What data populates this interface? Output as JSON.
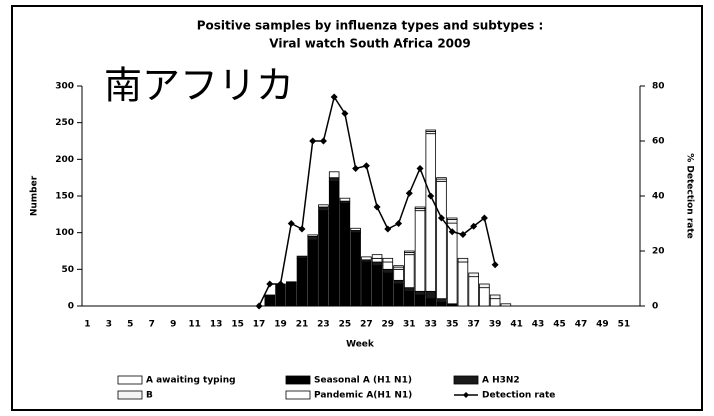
{
  "chart_data": {
    "type": "bar",
    "title": "Positive samples by influenza types and subtypes :",
    "subtitle": "Viral watch South Africa 2009",
    "annotation": "南アフリカ",
    "x_label": "Week",
    "y_label": "Number",
    "y2_label": "% Detection rate",
    "categories": [
      1,
      null,
      3,
      null,
      5,
      null,
      7,
      null,
      9,
      null,
      11,
      null,
      13,
      null,
      15,
      null,
      17,
      null,
      19,
      null,
      21,
      null,
      23,
      null,
      25,
      null,
      27,
      null,
      29,
      null,
      31,
      null,
      33,
      null,
      35,
      null,
      37,
      null,
      39,
      null,
      41,
      null,
      43,
      null,
      45,
      null,
      47,
      null,
      49,
      null,
      51,
      null
    ],
    "ylim": [
      0,
      300
    ],
    "yticks": [
      0,
      50,
      100,
      150,
      200,
      250,
      300
    ],
    "y2lim": [
      0,
      80
    ],
    "y2ticks": [
      0,
      20,
      40,
      60,
      80
    ],
    "stacked": true,
    "series": [
      {
        "name": "A awaiting typing",
        "color": "#ffffff",
        "values": [
          0,
          0,
          0,
          0,
          0,
          0,
          0,
          0,
          0,
          0,
          0,
          0,
          0,
          0,
          0,
          0,
          0,
          0,
          0,
          0,
          0,
          2,
          3,
          8,
          4,
          3,
          4,
          5,
          5,
          2,
          2,
          2,
          2,
          2,
          2,
          0,
          0,
          0,
          0,
          0,
          0,
          0,
          0,
          0,
          0,
          0,
          0,
          0,
          0,
          0,
          0,
          0
        ]
      },
      {
        "name": "Seasonal A (H1 N1)",
        "color": "#000000",
        "values": [
          0,
          0,
          0,
          0,
          0,
          0,
          0,
          0,
          0,
          0,
          0,
          0,
          0,
          0,
          0,
          0,
          0,
          15,
          30,
          33,
          65,
          90,
          130,
          170,
          140,
          100,
          60,
          55,
          45,
          30,
          20,
          15,
          10,
          5,
          3,
          0,
          0,
          0,
          0,
          0,
          0,
          0,
          0,
          0,
          0,
          0,
          0,
          0,
          0,
          0,
          0,
          0
        ]
      },
      {
        "name": "A H3N2",
        "color": "#1a1a1a",
        "values": [
          0,
          0,
          0,
          0,
          0,
          0,
          0,
          0,
          0,
          0,
          0,
          0,
          0,
          0,
          0,
          0,
          0,
          0,
          0,
          0,
          3,
          5,
          5,
          5,
          3,
          3,
          3,
          5,
          5,
          5,
          5,
          5,
          10,
          5,
          0,
          0,
          0,
          0,
          0,
          0,
          0,
          0,
          0,
          0,
          0,
          0,
          0,
          0,
          0,
          0,
          0,
          0
        ]
      },
      {
        "name": "B",
        "color": "#f4f4f4",
        "values": [
          0,
          0,
          0,
          0,
          0,
          0,
          0,
          0,
          0,
          0,
          0,
          0,
          0,
          0,
          0,
          0,
          0,
          0,
          0,
          0,
          0,
          0,
          0,
          0,
          0,
          0,
          0,
          0,
          0,
          3,
          3,
          3,
          3,
          3,
          5,
          5,
          5,
          5,
          5,
          0,
          0,
          0,
          0,
          0,
          0,
          0,
          0,
          0,
          0,
          0,
          0,
          0
        ]
      },
      {
        "name": "Pandemic A(H1 N1)",
        "color": "#ffffff",
        "values": [
          0,
          0,
          0,
          0,
          0,
          0,
          0,
          0,
          0,
          0,
          0,
          0,
          0,
          0,
          0,
          0,
          0,
          0,
          0,
          0,
          0,
          0,
          0,
          0,
          0,
          0,
          0,
          5,
          10,
          15,
          45,
          110,
          215,
          160,
          110,
          60,
          40,
          25,
          10,
          3,
          0,
          0,
          0,
          0,
          0,
          0,
          0,
          0,
          0,
          0,
          0,
          0
        ]
      },
      {
        "name": "Detection rate",
        "type": "line",
        "axis": "y2",
        "color": "#000000",
        "values": [
          null,
          null,
          null,
          null,
          null,
          null,
          null,
          null,
          null,
          null,
          null,
          null,
          null,
          null,
          null,
          null,
          0,
          8,
          8,
          30,
          28,
          60,
          60,
          76,
          70,
          50,
          51,
          36,
          28,
          30,
          41,
          50,
          40,
          32,
          27,
          26,
          29,
          32,
          15,
          null,
          null,
          null,
          null,
          null,
          null,
          null,
          null,
          null,
          null,
          null,
          null,
          null
        ]
      }
    ]
  }
}
